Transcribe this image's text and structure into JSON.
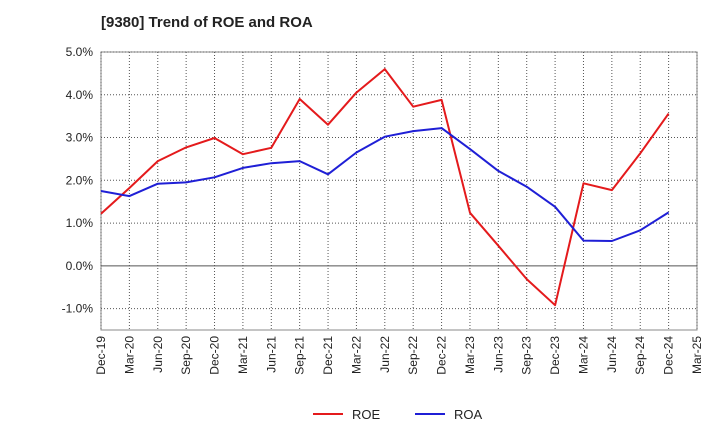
{
  "chart_data": {
    "type": "line",
    "title": "[9380]  Trend of ROE and ROA",
    "xlabel": "",
    "ylabel": "",
    "categories": [
      "Dec-19",
      "Mar-20",
      "Jun-20",
      "Sep-20",
      "Dec-20",
      "Mar-21",
      "Jun-21",
      "Sep-21",
      "Dec-21",
      "Mar-22",
      "Jun-22",
      "Sep-22",
      "Dec-22",
      "Mar-23",
      "Jun-23",
      "Sep-23",
      "Dec-23",
      "Mar-24",
      "Jun-24",
      "Sep-24",
      "Dec-24",
      "Mar-25"
    ],
    "ylim": [
      -1.5,
      5.0
    ],
    "yticks": [
      5.0,
      4.0,
      3.0,
      2.0,
      1.0,
      0.0,
      -1.0
    ],
    "ytick_labels": [
      "5.0%",
      "4.0%",
      "3.0%",
      "2.0%",
      "1.0%",
      "0.0%",
      "-1.0%"
    ],
    "grid": true,
    "legend_position": "bottom-center",
    "series": [
      {
        "name": "ROE",
        "color": "#e41a1c",
        "values": [
          1.22,
          1.82,
          2.45,
          2.77,
          2.99,
          2.61,
          2.76,
          3.9,
          3.3,
          4.05,
          4.6,
          3.72,
          3.88,
          1.24,
          0.47,
          -0.31,
          -0.92,
          1.93,
          1.77,
          2.63,
          3.56,
          null
        ]
      },
      {
        "name": "ROA",
        "color": "#1f1fd6",
        "values": [
          1.75,
          1.63,
          1.92,
          1.95,
          2.07,
          2.29,
          2.4,
          2.45,
          2.14,
          2.65,
          3.02,
          3.15,
          3.22,
          2.73,
          2.22,
          1.85,
          1.38,
          0.59,
          0.58,
          0.83,
          1.25,
          null
        ]
      }
    ]
  }
}
